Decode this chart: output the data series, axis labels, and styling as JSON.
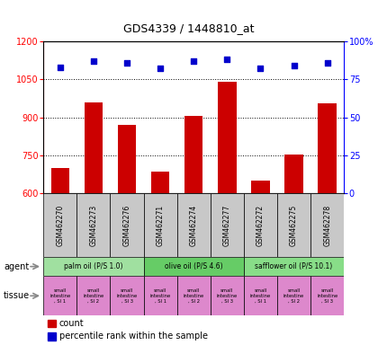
{
  "title": "GDS4339 / 1448810_at",
  "samples": [
    "GSM462270",
    "GSM462273",
    "GSM462276",
    "GSM462271",
    "GSM462274",
    "GSM462277",
    "GSM462272",
    "GSM462275",
    "GSM462278"
  ],
  "counts": [
    700,
    960,
    870,
    685,
    905,
    1040,
    650,
    753,
    955
  ],
  "percentiles": [
    83,
    87,
    86,
    82,
    87,
    88,
    82,
    84,
    86
  ],
  "ylim_left": [
    600,
    1200
  ],
  "ylim_right": [
    0,
    100
  ],
  "yticks_left": [
    600,
    750,
    900,
    1050,
    1200
  ],
  "yticks_right": [
    0,
    25,
    50,
    75,
    100
  ],
  "bar_color": "#cc0000",
  "dot_color": "#0000cc",
  "agents": [
    {
      "label": "palm oil (P/S 1.0)",
      "start": 0,
      "end": 3,
      "color": "#a0e0a0"
    },
    {
      "label": "olive oil (P/S 4.6)",
      "start": 3,
      "end": 6,
      "color": "#66cc66"
    },
    {
      "label": "safflower oil (P/S 10.1)",
      "start": 6,
      "end": 9,
      "color": "#88dd88"
    }
  ],
  "tissues": [
    "small\nintestine\n, SI 1",
    "small\nintestine\n, SI 2",
    "small\nintestine\n, SI 3",
    "small\nintestine\n, SI 1",
    "small\nintestine\n, SI 2",
    "small\nintestine\n, SI 3",
    "small\nintestine\n, SI 1",
    "small\nintestine\n, SI 2",
    "small\nintestine\n, SI 3"
  ],
  "tissue_color": "#dd88cc",
  "sample_bg_color": "#c8c8c8",
  "legend_count_color": "#cc0000",
  "legend_pct_color": "#0000cc",
  "gridline_color": "#000000",
  "gridline_ticks": [
    750,
    900,
    1050
  ]
}
